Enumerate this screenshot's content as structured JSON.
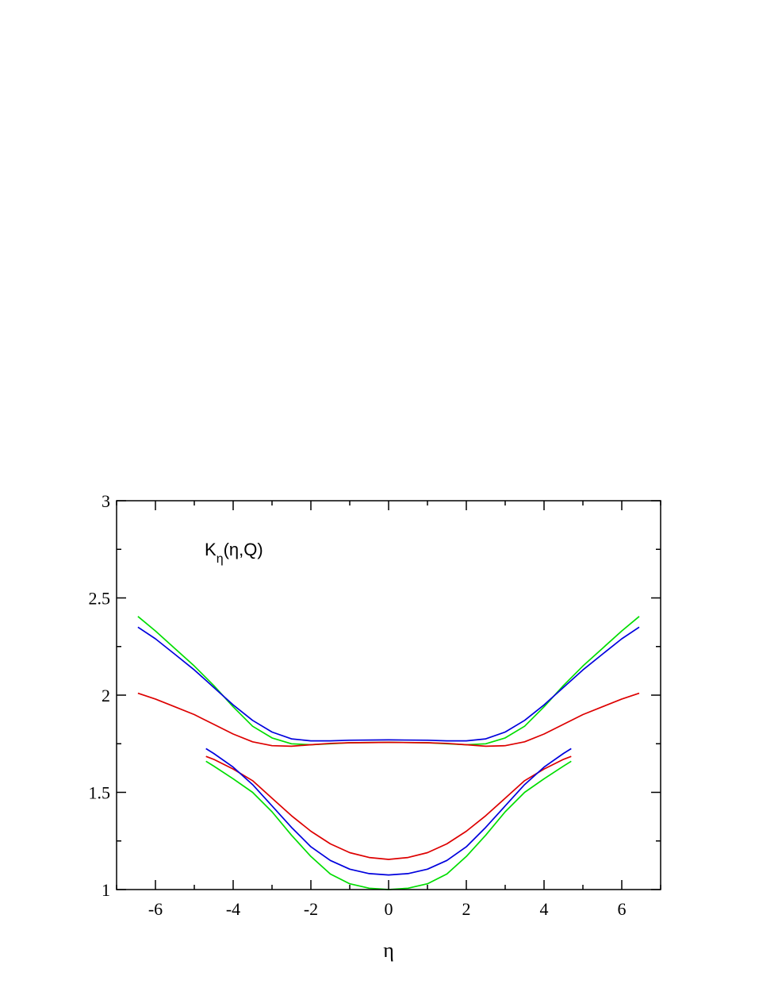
{
  "chart_data": {
    "type": "line",
    "title": "",
    "xlabel": "η",
    "ylabel": "",
    "xlim": [
      -7,
      7
    ],
    "ylim": [
      1,
      3
    ],
    "grid": false,
    "x_ticks": [
      -6,
      -4,
      -2,
      0,
      2,
      4,
      6
    ],
    "x_tick_labels": [
      "-6",
      "-4",
      "-2",
      "0",
      "2",
      "4",
      "6"
    ],
    "y_ticks": [
      1,
      1.5,
      2,
      2.5,
      3
    ],
    "y_tick_labels": [
      "1",
      "1.5",
      "2",
      "2.5",
      "3"
    ],
    "annotation": {
      "main": "K",
      "sub": "η",
      "rest": "(η,Q)"
    },
    "series": [
      {
        "color": "#00dd00",
        "x": [
          -6.45,
          -6,
          -5.5,
          -5,
          -4.5,
          -4,
          -3.5,
          -3,
          -2.5,
          -2,
          -1.5,
          -1,
          0,
          1,
          1.5,
          2,
          2.5,
          3,
          3.5,
          4,
          4.5,
          5,
          5.5,
          6,
          6.45
        ],
        "y": [
          2.405,
          2.33,
          2.24,
          2.15,
          2.05,
          1.94,
          1.84,
          1.78,
          1.75,
          1.745,
          1.75,
          1.755,
          1.757,
          1.755,
          1.75,
          1.745,
          1.75,
          1.78,
          1.84,
          1.94,
          2.05,
          2.15,
          2.24,
          2.33,
          2.405
        ]
      },
      {
        "color": "#0000dd",
        "x": [
          -6.45,
          -6,
          -5.5,
          -5,
          -4.5,
          -4,
          -3.5,
          -3,
          -2.5,
          -2,
          -1.5,
          -1,
          0,
          1,
          1.5,
          2,
          2.5,
          3,
          3.5,
          4,
          4.5,
          5,
          5.5,
          6,
          6.45
        ],
        "y": [
          2.35,
          2.29,
          2.21,
          2.13,
          2.04,
          1.95,
          1.87,
          1.81,
          1.775,
          1.765,
          1.765,
          1.768,
          1.77,
          1.768,
          1.765,
          1.765,
          1.775,
          1.81,
          1.87,
          1.95,
          2.04,
          2.13,
          2.21,
          2.29,
          2.35
        ]
      },
      {
        "color": "#dd0000",
        "x": [
          -6.45,
          -6,
          -5.5,
          -5,
          -4.5,
          -4,
          -3.5,
          -3,
          -2.5,
          -2,
          -1.5,
          -1,
          0,
          1,
          1.5,
          2,
          2.5,
          3,
          3.5,
          4,
          4.5,
          5,
          5.5,
          6,
          6.45
        ],
        "y": [
          2.01,
          1.98,
          1.94,
          1.9,
          1.85,
          1.8,
          1.76,
          1.74,
          1.737,
          1.745,
          1.752,
          1.755,
          1.757,
          1.755,
          1.752,
          1.745,
          1.737,
          1.74,
          1.76,
          1.8,
          1.85,
          1.9,
          1.94,
          1.98,
          2.01
        ]
      },
      {
        "color": "#dd0000",
        "x": [
          -4.7,
          -4.5,
          -4,
          -3.5,
          -3,
          -2.5,
          -2,
          -1.5,
          -1,
          -0.5,
          0,
          0.5,
          1,
          1.5,
          2,
          2.5,
          3,
          3.5,
          4,
          4.5,
          4.7
        ],
        "y": [
          1.685,
          1.67,
          1.62,
          1.56,
          1.47,
          1.38,
          1.3,
          1.235,
          1.19,
          1.165,
          1.155,
          1.165,
          1.19,
          1.235,
          1.3,
          1.38,
          1.47,
          1.56,
          1.62,
          1.67,
          1.685
        ]
      },
      {
        "color": "#0000dd",
        "x": [
          -4.7,
          -4.5,
          -4,
          -3.5,
          -3,
          -2.5,
          -2,
          -1.5,
          -1,
          -0.5,
          0,
          0.5,
          1,
          1.5,
          2,
          2.5,
          3,
          3.5,
          4,
          4.5,
          4.7
        ],
        "y": [
          1.725,
          1.7,
          1.63,
          1.54,
          1.43,
          1.32,
          1.22,
          1.15,
          1.105,
          1.082,
          1.075,
          1.082,
          1.105,
          1.15,
          1.22,
          1.32,
          1.43,
          1.54,
          1.63,
          1.7,
          1.725
        ]
      },
      {
        "color": "#00dd00",
        "x": [
          -4.7,
          -4.5,
          -4,
          -3.5,
          -3,
          -2.5,
          -2,
          -1.5,
          -1,
          -0.5,
          0,
          0.5,
          1,
          1.5,
          2,
          2.5,
          3,
          3.5,
          4,
          4.5,
          4.7
        ],
        "y": [
          1.66,
          1.635,
          1.57,
          1.5,
          1.4,
          1.28,
          1.17,
          1.08,
          1.03,
          1.007,
          1.0,
          1.007,
          1.03,
          1.08,
          1.17,
          1.28,
          1.4,
          1.5,
          1.57,
          1.635,
          1.66
        ]
      }
    ]
  }
}
